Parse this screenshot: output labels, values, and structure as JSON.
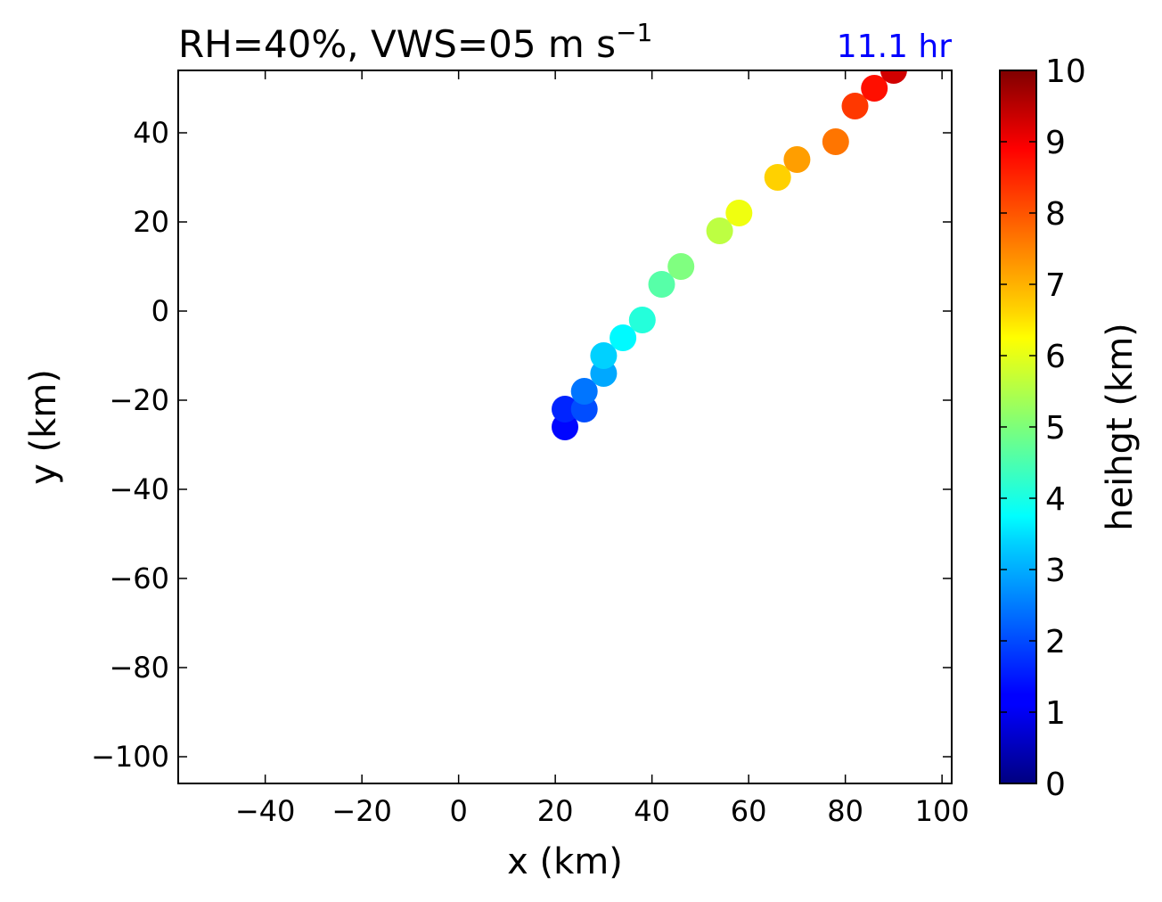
{
  "chart_data": {
    "type": "scatter",
    "title": "RH=40%, VWS=05 m s",
    "title_superscript": "−1",
    "annotation": "11.1 hr",
    "annotation_color": "#0000ff",
    "xlabel": "x (km)",
    "ylabel": "y (km)",
    "xlim": [
      -58,
      102
    ],
    "ylim": [
      -106,
      54
    ],
    "xticks": [
      -40,
      -20,
      0,
      20,
      40,
      60,
      80,
      100
    ],
    "xtick_labels": [
      "−40",
      "−20",
      "0",
      "20",
      "40",
      "60",
      "80",
      "100"
    ],
    "yticks": [
      -100,
      -80,
      -60,
      -40,
      -20,
      0,
      20,
      40
    ],
    "ytick_labels": [
      "−100",
      "−80",
      "−60",
      "−40",
      "−20",
      "0",
      "20",
      "40"
    ],
    "grid": false,
    "colormap": "jet",
    "colorbar": {
      "label": "heihgt (km)",
      "range": [
        0,
        10
      ],
      "ticks": [
        "0",
        "1",
        "2",
        "3",
        "4",
        "5",
        "6",
        "7",
        "8",
        "9",
        "10"
      ]
    },
    "points": [
      {
        "x": 22,
        "y": -26,
        "height": 1.3
      },
      {
        "x": 22,
        "y": -22,
        "height": 1.6
      },
      {
        "x": 26,
        "y": -22,
        "height": 2.0
      },
      {
        "x": 26,
        "y": -18,
        "height": 2.4
      },
      {
        "x": 30,
        "y": -14,
        "height": 2.9
      },
      {
        "x": 30,
        "y": -10,
        "height": 3.3
      },
      {
        "x": 34,
        "y": -6,
        "height": 3.7
      },
      {
        "x": 38,
        "y": -2,
        "height": 4.1
      },
      {
        "x": 42,
        "y": 6,
        "height": 4.6
      },
      {
        "x": 46,
        "y": 10,
        "height": 5.0
      },
      {
        "x": 54,
        "y": 18,
        "height": 5.6
      },
      {
        "x": 58,
        "y": 22,
        "height": 6.1
      },
      {
        "x": 66,
        "y": 30,
        "height": 6.7
      },
      {
        "x": 70,
        "y": 34,
        "height": 7.2
      },
      {
        "x": 78,
        "y": 38,
        "height": 7.6
      },
      {
        "x": 82,
        "y": 46,
        "height": 8.2
      },
      {
        "x": 86,
        "y": 50,
        "height": 8.6
      },
      {
        "x": 90,
        "y": 54,
        "height": 9.2
      }
    ]
  }
}
